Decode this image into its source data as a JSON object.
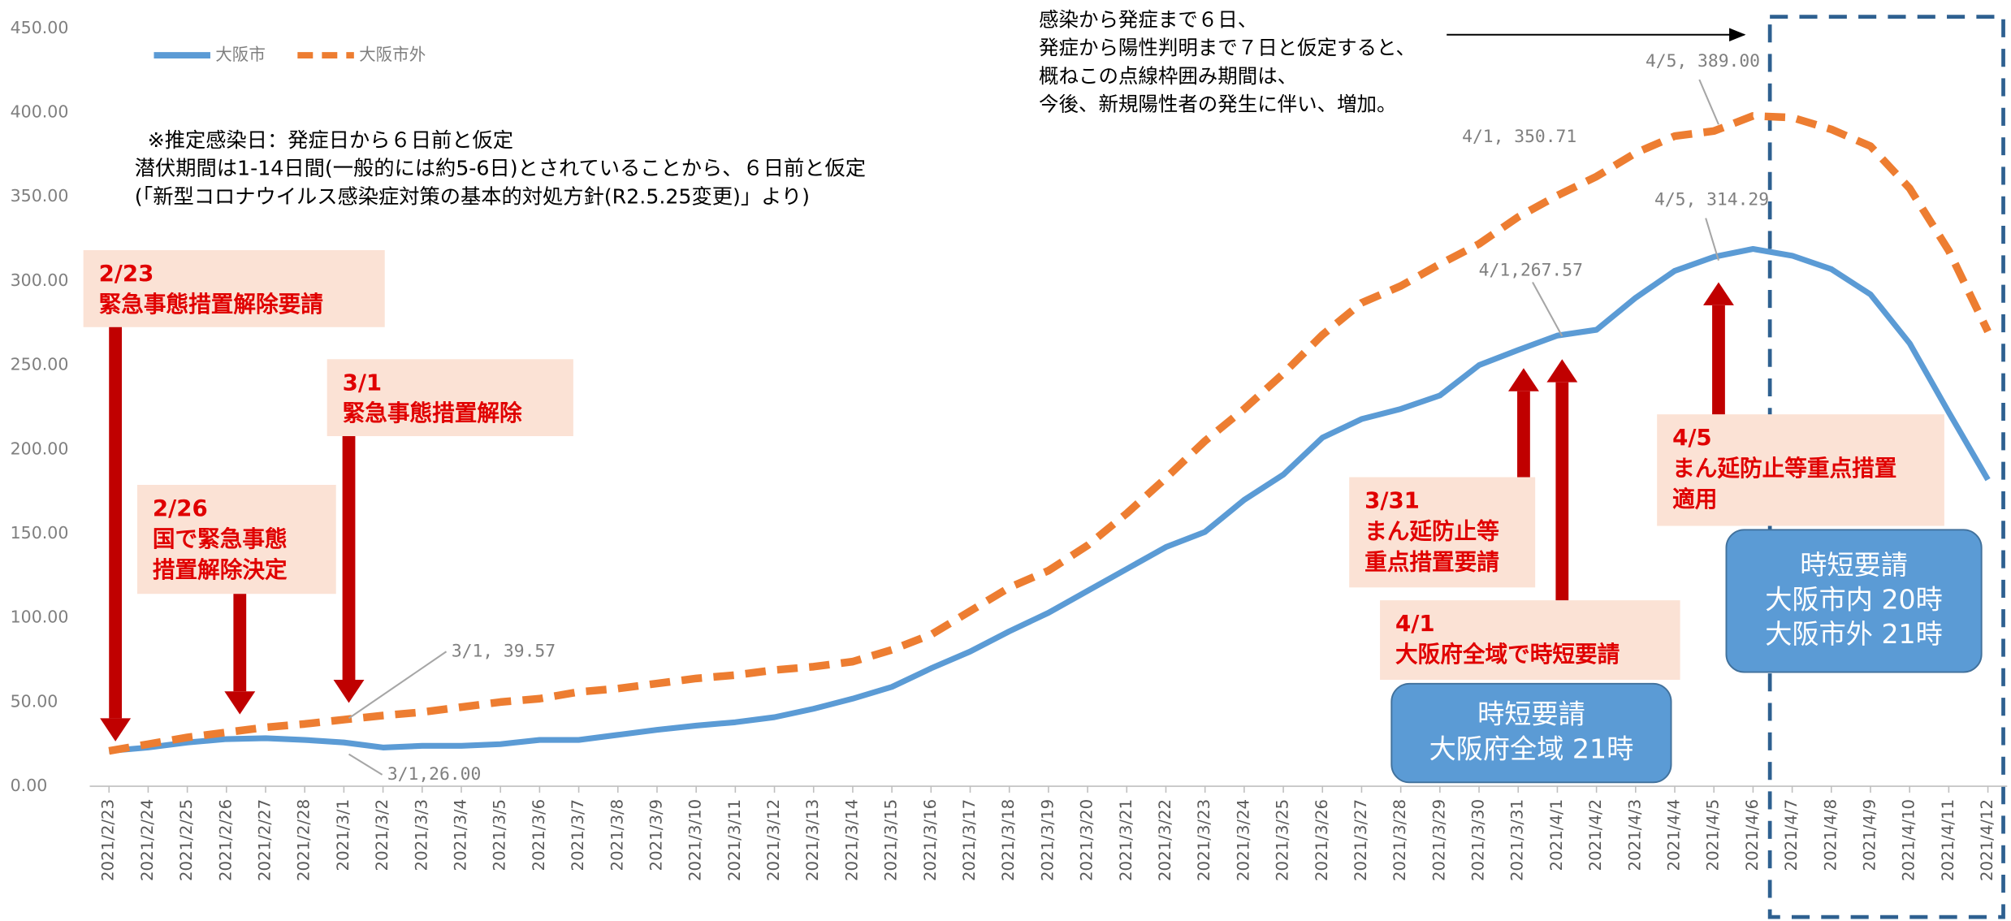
{
  "chart_data": {
    "type": "line",
    "categories": [
      "2021/2/23",
      "2021/2/24",
      "2021/2/25",
      "2021/2/26",
      "2021/2/27",
      "2021/2/28",
      "2021/3/1",
      "2021/3/2",
      "2021/3/3",
      "2021/3/4",
      "2021/3/5",
      "2021/3/6",
      "2021/3/7",
      "2021/3/8",
      "2021/3/9",
      "2021/3/10",
      "2021/3/11",
      "2021/3/12",
      "2021/3/13",
      "2021/3/14",
      "2021/3/15",
      "2021/3/16",
      "2021/3/17",
      "2021/3/18",
      "2021/3/19",
      "2021/3/20",
      "2021/3/21",
      "2021/3/22",
      "2021/3/23",
      "2021/3/24",
      "2021/3/25",
      "2021/3/26",
      "2021/3/27",
      "2021/3/28",
      "2021/3/29",
      "2021/3/30",
      "2021/3/31",
      "2021/4/1",
      "2021/4/2",
      "2021/4/3",
      "2021/4/4",
      "2021/4/5",
      "2021/4/6",
      "2021/4/7",
      "2021/4/8",
      "2021/4/9",
      "2021/4/10",
      "2021/4/11",
      "2021/4/12"
    ],
    "series": [
      {
        "name": "大阪市",
        "color": "#5b9bd5",
        "dashed": false,
        "values": [
          21,
          23,
          26,
          28,
          28.5,
          27.5,
          26,
          23,
          24,
          24,
          25,
          27.5,
          27.5,
          30.5,
          33.5,
          36,
          38,
          41,
          46,
          52,
          59,
          70,
          80,
          92,
          103,
          116,
          129,
          142,
          151,
          170,
          185,
          207,
          218,
          224,
          232,
          250,
          259,
          267.57,
          271,
          290,
          306,
          314.29,
          319,
          315,
          307,
          292,
          263,
          222,
          182
        ],
        "value_labels": [
          null,
          null,
          null,
          null,
          null,
          null,
          "3/1,26.00",
          null,
          null,
          null,
          null,
          null,
          null,
          null,
          null,
          null,
          null,
          null,
          null,
          null,
          null,
          null,
          null,
          null,
          null,
          null,
          null,
          null,
          null,
          null,
          null,
          null,
          null,
          null,
          null,
          null,
          null,
          "4/1,267.57",
          null,
          null,
          null,
          "4/5, 314.29",
          null,
          null,
          null,
          null,
          null,
          null,
          null
        ]
      },
      {
        "name": "大阪市外",
        "color": "#ed7d31",
        "dashed": true,
        "values": [
          21,
          25,
          29,
          32,
          35,
          37,
          39.57,
          42,
          44,
          47,
          50,
          52,
          56,
          58,
          61,
          64,
          66,
          69,
          71,
          74,
          81,
          90,
          104,
          118,
          128,
          143,
          162,
          183,
          205,
          224,
          245,
          268,
          287,
          297,
          310,
          322,
          338,
          350.71,
          362,
          376,
          386,
          389,
          398,
          397,
          390,
          380,
          355,
          318,
          270
        ],
        "value_labels": [
          null,
          null,
          null,
          null,
          null,
          null,
          "3/1, 39.57",
          null,
          null,
          null,
          null,
          null,
          null,
          null,
          null,
          null,
          null,
          null,
          null,
          null,
          null,
          null,
          null,
          null,
          null,
          null,
          null,
          null,
          null,
          null,
          null,
          null,
          null,
          null,
          null,
          null,
          null,
          "4/1, 350.71",
          null,
          null,
          null,
          "4/5, 389.00",
          null,
          null,
          null,
          null,
          null,
          null,
          null
        ]
      }
    ],
    "ylim": [
      0,
      450
    ],
    "yticks": [
      {
        "value": 0,
        "label": "0.00"
      },
      {
        "value": 50,
        "label": "50.00"
      },
      {
        "value": 100,
        "label": "100.00"
      },
      {
        "value": 150,
        "label": "150.00"
      },
      {
        "value": 200,
        "label": "200.00"
      },
      {
        "value": 250,
        "label": "250.00"
      },
      {
        "value": 300,
        "label": "300.00"
      },
      {
        "value": 350,
        "label": "350.00"
      },
      {
        "value": 400,
        "label": "400.00"
      },
      {
        "value": 450,
        "label": "450.00"
      }
    ],
    "grid": false,
    "legend": "top-left",
    "annotations": [
      {
        "kind": "note",
        "lines": [
          "※推定感染日：発症日から６日前と仮定",
          "潜伏期間は1-14日間(一般的には約5-6日)とされていることから、６日前と仮定",
          "(「新型コロナウイルス感染症対策の基本的対処方針(R2.5.25変更)」より)"
        ]
      },
      {
        "kind": "note",
        "lines": [
          "感染から発症まで６日、",
          "発症から陽性判明まで７日と仮定すると、",
          "概ねこの点線枠囲み期間は、",
          "今後、新規陽性者の発生に伴い、増加。"
        ]
      },
      {
        "kind": "event",
        "lines": [
          "2/23",
          "緊急事態措置解除要請"
        ]
      },
      {
        "kind": "event",
        "lines": [
          "3/1",
          "緊急事態措置解除"
        ]
      },
      {
        "kind": "event",
        "lines": [
          "2/26",
          "国で緊急事態",
          "措置解除決定"
        ]
      },
      {
        "kind": "event",
        "lines": [
          "3/31",
          "まん延防止等",
          "重点措置要請"
        ]
      },
      {
        "kind": "event",
        "lines": [
          "4/1",
          "大阪府全域で時短要請"
        ]
      },
      {
        "kind": "event",
        "lines": [
          "4/5",
          "まん延防止等重点措置",
          "適用"
        ]
      },
      {
        "kind": "measure",
        "lines": [
          "時短要請",
          "大阪府全域 21時"
        ]
      },
      {
        "kind": "measure",
        "lines": [
          "時短要請",
          "大阪市内 20時",
          "大阪市外 21時"
        ]
      }
    ]
  }
}
